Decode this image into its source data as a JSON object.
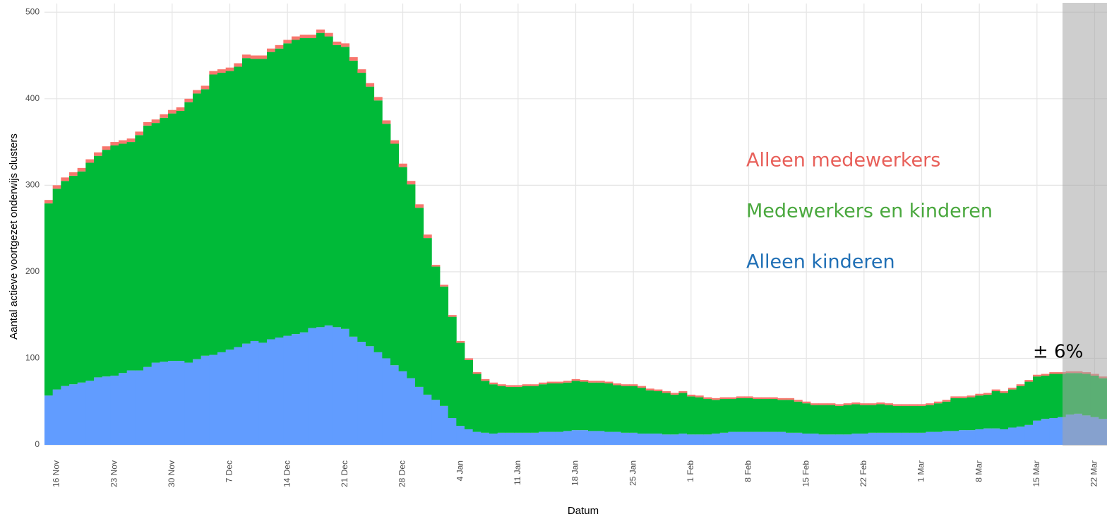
{
  "chart_data": {
    "type": "stacked-bar",
    "x_label": "Datum",
    "y_label": "Aantal actieve voortgezet onderwijs clusters",
    "annotation": "± 6%",
    "ylim": [
      0,
      510
    ],
    "yticks": [
      0,
      100,
      200,
      300,
      400,
      500
    ],
    "grid": true,
    "categories": [
      null,
      "16 Nov",
      null,
      null,
      null,
      null,
      null,
      null,
      "23 Nov",
      null,
      null,
      null,
      null,
      null,
      null,
      "30 Nov",
      null,
      null,
      null,
      null,
      null,
      null,
      "7 Dec",
      null,
      null,
      null,
      null,
      null,
      null,
      "14 Dec",
      null,
      null,
      null,
      null,
      null,
      null,
      "21 Dec",
      null,
      null,
      null,
      null,
      null,
      null,
      "28 Dec",
      null,
      null,
      null,
      null,
      null,
      null,
      "4 Jan",
      null,
      null,
      null,
      null,
      null,
      null,
      "11 Jan",
      null,
      null,
      null,
      null,
      null,
      null,
      "18 Jan",
      null,
      null,
      null,
      null,
      null,
      null,
      "25 Jan",
      null,
      null,
      null,
      null,
      null,
      null,
      "1 Feb",
      null,
      null,
      null,
      null,
      null,
      null,
      "8 Feb",
      null,
      null,
      null,
      null,
      null,
      null,
      "15 Feb",
      null,
      null,
      null,
      null,
      null,
      null,
      "22 Feb",
      null,
      null,
      null,
      null,
      null,
      null,
      "1 Mar",
      null,
      null,
      null,
      null,
      null,
      null,
      "8 Mar",
      null,
      null,
      null,
      null,
      null,
      null,
      "15 Mar",
      null,
      null,
      null,
      null,
      null,
      null,
      "22 Mar",
      null
    ],
    "series": [
      {
        "name": "Alleen kinderen",
        "color": "#619CFF",
        "values": [
          57,
          64,
          68,
          70,
          72,
          74,
          78,
          79,
          80,
          83,
          86,
          86,
          90,
          95,
          96,
          97,
          97,
          95,
          99,
          103,
          104,
          107,
          110,
          113,
          117,
          120,
          118,
          122,
          124,
          126,
          128,
          130,
          135,
          136,
          138,
          136,
          134,
          125,
          119,
          114,
          107,
          100,
          92,
          85,
          77,
          67,
          58,
          52,
          45,
          31,
          22,
          18,
          15,
          14,
          13,
          14,
          14,
          14,
          14,
          14,
          15,
          15,
          15,
          16,
          17,
          17,
          16,
          16,
          15,
          15,
          14,
          14,
          13,
          13,
          13,
          12,
          12,
          13,
          12,
          12,
          12,
          13,
          14,
          15,
          15,
          15,
          15,
          15,
          15,
          15,
          14,
          14,
          13,
          13,
          12,
          12,
          12,
          12,
          13,
          13,
          14,
          14,
          14,
          14,
          14,
          14,
          14,
          15,
          15,
          16,
          16,
          17,
          17,
          18,
          19,
          19,
          18,
          20,
          21,
          23,
          28,
          30,
          31,
          32,
          35,
          36,
          34,
          32,
          30
        ]
      },
      {
        "name": "Medewerkers en kinderen",
        "color": "#00BA38",
        "values": [
          222,
          232,
          237,
          241,
          244,
          252,
          256,
          262,
          266,
          265,
          264,
          272,
          279,
          277,
          282,
          286,
          289,
          301,
          307,
          308,
          324,
          323,
          322,
          324,
          330,
          326,
          328,
          332,
          334,
          338,
          340,
          340,
          335,
          340,
          334,
          326,
          326,
          319,
          311,
          300,
          291,
          271,
          256,
          236,
          224,
          207,
          181,
          154,
          138,
          117,
          96,
          80,
          67,
          60,
          57,
          54,
          53,
          53,
          54,
          54,
          55,
          56,
          56,
          56,
          57,
          56,
          56,
          56,
          56,
          54,
          54,
          54,
          53,
          50,
          49,
          48,
          46,
          47,
          44,
          43,
          41,
          39,
          39,
          38,
          39,
          39,
          38,
          38,
          38,
          37,
          38,
          36,
          35,
          33,
          34,
          34,
          33,
          34,
          34,
          33,
          32,
          33,
          32,
          31,
          31,
          31,
          31,
          31,
          33,
          34,
          38,
          37,
          38,
          39,
          39,
          43,
          42,
          44,
          47,
          50,
          51,
          50,
          51,
          50,
          48,
          47,
          48,
          48,
          47
        ]
      },
      {
        "name": "Alleen medewerkers",
        "color": "#F8766D",
        "values": [
          4,
          4,
          4,
          4,
          4,
          4,
          4,
          4,
          4,
          4,
          4,
          4,
          4,
          4,
          4,
          4,
          4,
          4,
          4,
          4,
          4,
          4,
          4,
          4,
          4,
          4,
          4,
          4,
          4,
          4,
          4,
          4,
          4,
          4,
          4,
          4,
          4,
          4,
          4,
          4,
          4,
          4,
          4,
          4,
          4,
          4,
          4,
          2,
          2,
          2,
          2,
          2,
          2,
          2,
          2,
          2,
          2,
          2,
          2,
          2,
          2,
          2,
          2,
          2,
          2,
          2,
          2,
          2,
          2,
          2,
          2,
          2,
          2,
          2,
          2,
          2,
          2,
          2,
          2,
          2,
          2,
          2,
          2,
          2,
          2,
          2,
          2,
          2,
          2,
          2,
          2,
          2,
          2,
          2,
          2,
          2,
          2,
          2,
          2,
          2,
          2,
          2,
          2,
          2,
          2,
          2,
          2,
          2,
          2,
          2,
          2,
          2,
          2,
          2,
          2,
          2,
          2,
          2,
          2,
          2,
          2,
          2,
          2,
          2,
          2,
          2,
          2,
          2,
          2
        ]
      }
    ]
  }
}
